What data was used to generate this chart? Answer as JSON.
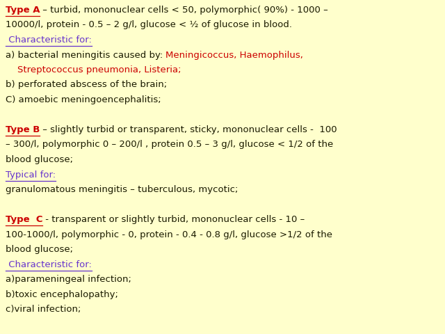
{
  "background_color": "#ffffcc",
  "font_size": 9.5,
  "lines": [
    [
      {
        "text": "Type A",
        "color": "#cc0000",
        "bold": true,
        "underline": true
      },
      {
        "text": " – turbid, mononuclear cells < 50, polymorphic( 90%) - 1000 –",
        "color": "#1a1a00",
        "bold": false
      }
    ],
    [
      {
        "text": "10000/l, protein - 0.5 – 2 g/l, glucose < ½ of glucose in blood.",
        "color": "#1a1a00",
        "bold": false
      }
    ],
    [
      {
        "text": " Characteristic for:",
        "color": "#6633cc",
        "bold": false,
        "underline": true
      }
    ],
    [
      {
        "text": "a) bacterial meningitis caused by: ",
        "color": "#1a1a00",
        "bold": false
      },
      {
        "text": "Meningicoccus, Haemophilus,",
        "color": "#cc0000",
        "bold": false
      }
    ],
    [
      {
        "text": "    Streptococcus pneumonia, Listeria;",
        "color": "#cc0000",
        "bold": false
      }
    ],
    [
      {
        "text": "b) perforated abscess of the brain;",
        "color": "#1a1a00",
        "bold": false
      }
    ],
    [
      {
        "text": "C) amoebic meningoencephalitis;",
        "color": "#1a1a00",
        "bold": false
      }
    ],
    [],
    [
      {
        "text": "Type B",
        "color": "#cc0000",
        "bold": true,
        "underline": true
      },
      {
        "text": " – slightly turbid or transparent, sticky, mononuclear cells -  100",
        "color": "#1a1a00",
        "bold": false
      }
    ],
    [
      {
        "text": "– 300/l, polymorphic 0 – 200/l , protein 0.5 – 3 g/l, glucose < 1/2 of the",
        "color": "#1a1a00",
        "bold": false
      }
    ],
    [
      {
        "text": "blood glucose;",
        "color": "#1a1a00",
        "bold": false
      }
    ],
    [
      {
        "text": "Typical for:",
        "color": "#6633cc",
        "bold": false,
        "underline": true
      }
    ],
    [
      {
        "text": "granulomatous meningitis – tuberculous, mycotic;",
        "color": "#1a1a00",
        "bold": false
      }
    ],
    [],
    [
      {
        "text": "Type  C",
        "color": "#cc0000",
        "bold": true,
        "underline": true
      },
      {
        "text": " - transparent or slightly turbid, mononuclear cells - 10 –",
        "color": "#1a1a00",
        "bold": false
      }
    ],
    [
      {
        "text": "100-1000/l, polymorphic - 0, protein - 0.4 - 0.8 g/l, glucose >1/2 of the",
        "color": "#1a1a00",
        "bold": false
      }
    ],
    [
      {
        "text": "blood glucose;",
        "color": "#1a1a00",
        "bold": false
      }
    ],
    [
      {
        "text": " Characteristic for:",
        "color": "#6633cc",
        "bold": false,
        "underline": true
      }
    ],
    [
      {
        "text": "a)parameningeal infection;",
        "color": "#1a1a00",
        "bold": false
      }
    ],
    [
      {
        "text": "b)toxic encephalopathy;",
        "color": "#1a1a00",
        "bold": false
      }
    ],
    [
      {
        "text": "c)viral infection;",
        "color": "#1a1a00",
        "bold": false
      }
    ]
  ]
}
